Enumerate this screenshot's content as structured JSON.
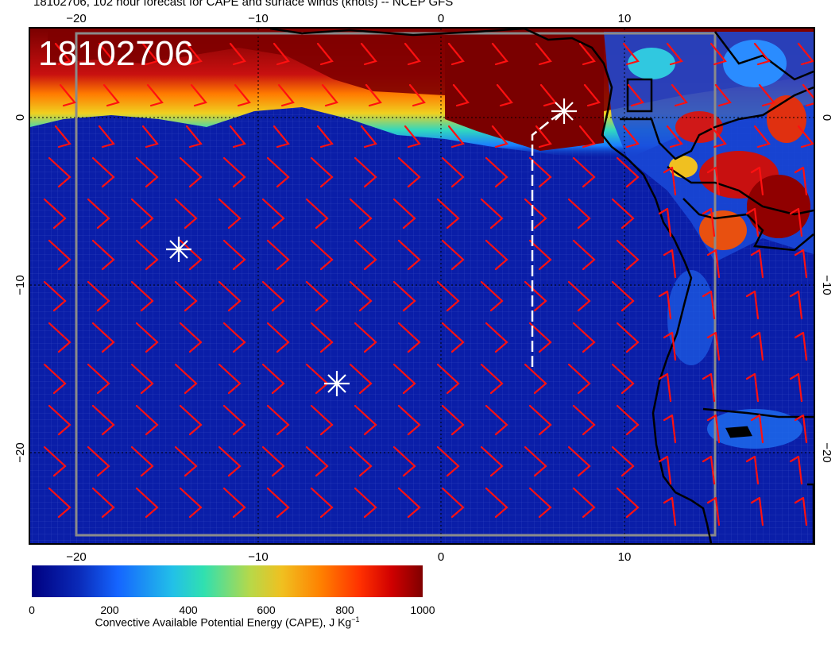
{
  "title": "18102706, 102 hour forecast for CAPE and surface winds (knots) -- NCEP GFS",
  "stamp": "18102706",
  "map": {
    "lon_ticks_bottom": [
      "−20",
      "−10",
      "0",
      "10"
    ],
    "lon_ticks_top": [
      "−20",
      "−10",
      "0",
      "10"
    ],
    "lat_ticks_left": [
      "0",
      "−10",
      "−20"
    ],
    "lat_ticks_right": [
      "0",
      "−10",
      "−20"
    ],
    "markers": [
      {
        "name": "star-marker",
        "lon": 6.9,
        "lat": 0.4
      },
      {
        "name": "star-marker",
        "lon": -14.5,
        "lat": -7.6
      },
      {
        "name": "star-marker",
        "lon": -5.8,
        "lat": -15.9
      }
    ],
    "barb_color": "#ff1010",
    "flight_track_color": "#ffffff"
  },
  "colorbar": {
    "ticks": [
      "0",
      "200",
      "400",
      "600",
      "800",
      "1000"
    ],
    "label_main": "Convective Available Potential Energy (CAPE), J Kg",
    "label_sup": "−1"
  }
}
